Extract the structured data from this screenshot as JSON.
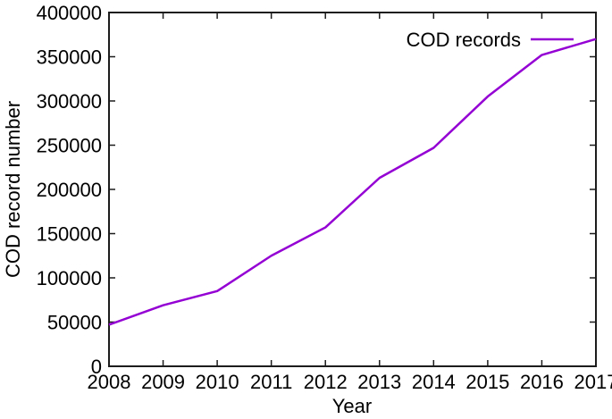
{
  "chart_data": {
    "type": "line",
    "title": "",
    "xlabel": "Year",
    "ylabel": "COD record number",
    "x": [
      2008,
      2009,
      2010,
      2011,
      2012,
      2013,
      2014,
      2015,
      2016,
      2017
    ],
    "series": [
      {
        "name": "COD records",
        "color": "#9400d3",
        "values": [
          47000,
          69000,
          85000,
          125000,
          157000,
          213000,
          247000,
          305000,
          352000,
          370000
        ]
      }
    ],
    "xlim": [
      2008,
      2017
    ],
    "ylim": [
      0,
      400000
    ],
    "xticks": [
      2008,
      2009,
      2010,
      2011,
      2012,
      2013,
      2014,
      2015,
      2016,
      2017
    ],
    "yticks": [
      0,
      50000,
      100000,
      150000,
      200000,
      250000,
      300000,
      350000,
      400000
    ],
    "grid": false,
    "legend_position": "top-right"
  },
  "colors": {
    "line": "#9400d3",
    "axis": "#1c1c1c",
    "text": "#000000",
    "background": "#ffffff"
  }
}
